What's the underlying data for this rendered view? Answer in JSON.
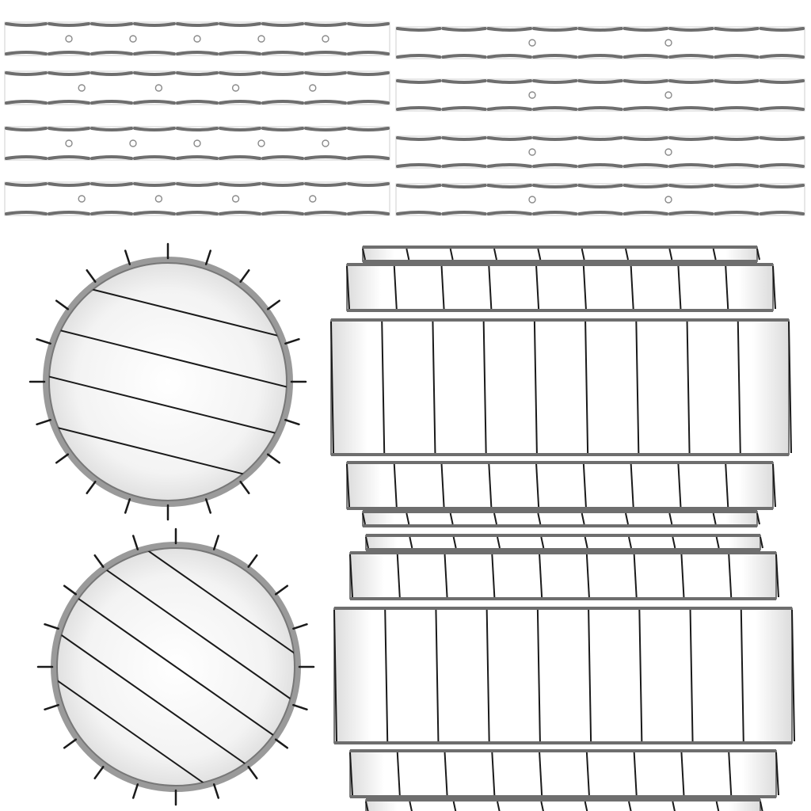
{
  "texture": {
    "kind": "ambient-occlusion bake (UV texture atlas)",
    "background": "#ffffff",
    "ink": "#1a1a1a",
    "shade": "#6e6e6e",
    "hoop_strips": {
      "left_column_rivets": [
        5,
        4,
        5,
        4
      ],
      "right_column_rivets": [
        2,
        2,
        2,
        2
      ]
    },
    "lids": {
      "count": 2,
      "plank_lines": [
        4,
        5
      ],
      "nail_count": [
        20,
        20
      ]
    },
    "staves": {
      "count": 2,
      "bands": 5,
      "stave_dividers": 9
    }
  }
}
